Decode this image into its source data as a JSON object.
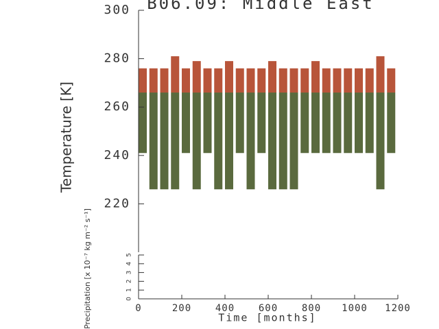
{
  "chart_data": [
    {
      "type": "range-bar",
      "title": "B06.09: Middle East",
      "y_label": "Temperature [K]",
      "x": [
        0,
        50,
        100,
        150,
        200,
        250,
        300,
        350,
        400,
        450,
        500,
        550,
        600,
        650,
        700,
        750,
        800,
        850,
        900,
        950,
        1000,
        1050,
        1100,
        1150
      ],
      "high": [
        276,
        276,
        276,
        281,
        276,
        279,
        276,
        276,
        279,
        276,
        276,
        276,
        279,
        276,
        276,
        276,
        279,
        276,
        276,
        276,
        276,
        276,
        281,
        276
      ],
      "mid": [
        266,
        266,
        266,
        266,
        266,
        266,
        266,
        266,
        266,
        266,
        266,
        266,
        266,
        266,
        266,
        266,
        266,
        266,
        266,
        266,
        266,
        266,
        266,
        266
      ],
      "low": [
        241,
        226,
        226,
        226,
        241,
        226,
        241,
        226,
        226,
        241,
        226,
        241,
        226,
        226,
        226,
        241,
        241,
        241,
        241,
        241,
        241,
        241,
        226,
        241
      ],
      "high_color": "#b8553a",
      "low_color": "#5a6a3e",
      "xlim": [
        0,
        1200
      ],
      "ylim": [
        200,
        300
      ],
      "yticks": [
        220,
        240,
        260,
        280,
        300
      ]
    },
    {
      "type": "empty",
      "y_label": "Precipitation [x 10⁻⁷ kg m⁻² s⁻¹]",
      "x_label": "Time [months]",
      "xlim": [
        0,
        1200
      ],
      "xticks": [
        0,
        200,
        400,
        600,
        800,
        1000,
        1200
      ],
      "ylim": [
        0,
        5
      ],
      "yticks": [
        0,
        1,
        2,
        3,
        4,
        5
      ]
    }
  ]
}
